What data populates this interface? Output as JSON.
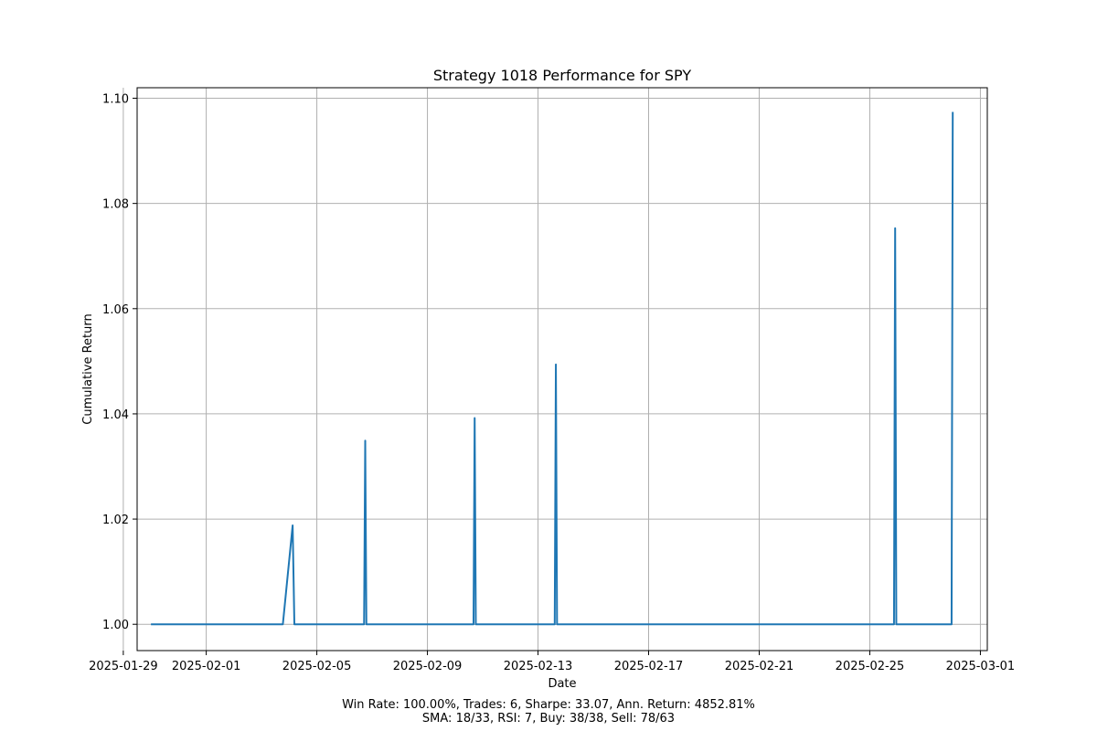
{
  "chart_data": {
    "type": "line",
    "title": "Strategy 1018 Performance for SPY",
    "xlabel": "Date",
    "ylabel": "Cumulative Return",
    "x_ticks": [
      "2025-01-29",
      "2025-02-01",
      "2025-02-05",
      "2025-02-09",
      "2025-02-13",
      "2025-02-17",
      "2025-02-21",
      "2025-02-25",
      "2025-03-01"
    ],
    "y_ticks": [
      1.0,
      1.02,
      1.04,
      1.06,
      1.08,
      1.1
    ],
    "xlim": [
      "2025-01-29T12:00",
      "2025-03-01T06:00"
    ],
    "ylim": [
      0.995,
      1.102
    ],
    "grid": true,
    "series": [
      {
        "color": "#1f77b4",
        "points": [
          [
            "2025-01-30T00:00",
            1.0
          ],
          [
            "2025-02-03T18:30",
            1.0
          ],
          [
            "2025-02-04T03:00",
            1.0188
          ],
          [
            "2025-02-04T04:30",
            1.0
          ],
          [
            "2025-02-06T17:00",
            1.0
          ],
          [
            "2025-02-06T18:00",
            1.0349
          ],
          [
            "2025-02-06T19:00",
            1.0
          ],
          [
            "2025-02-10T16:00",
            1.0
          ],
          [
            "2025-02-10T17:00",
            1.0392
          ],
          [
            "2025-02-10T18:00",
            1.0
          ],
          [
            "2025-02-13T14:30",
            1.0
          ],
          [
            "2025-02-13T15:30",
            1.0494
          ],
          [
            "2025-02-13T16:30",
            1.0
          ],
          [
            "2025-02-25T21:00",
            1.0
          ],
          [
            "2025-02-25T22:00",
            1.0753
          ],
          [
            "2025-02-25T23:00",
            1.0
          ],
          [
            "2025-02-27T23:00",
            1.0
          ],
          [
            "2025-02-28T00:00",
            1.0974
          ]
        ]
      }
    ]
  },
  "footer": {
    "line1": "Win Rate: 100.00%, Trades: 6, Sharpe: 33.07, Ann. Return: 4852.81%",
    "line2": "SMA: 18/33, RSI: 7, Buy: 38/38, Sell: 78/63"
  }
}
